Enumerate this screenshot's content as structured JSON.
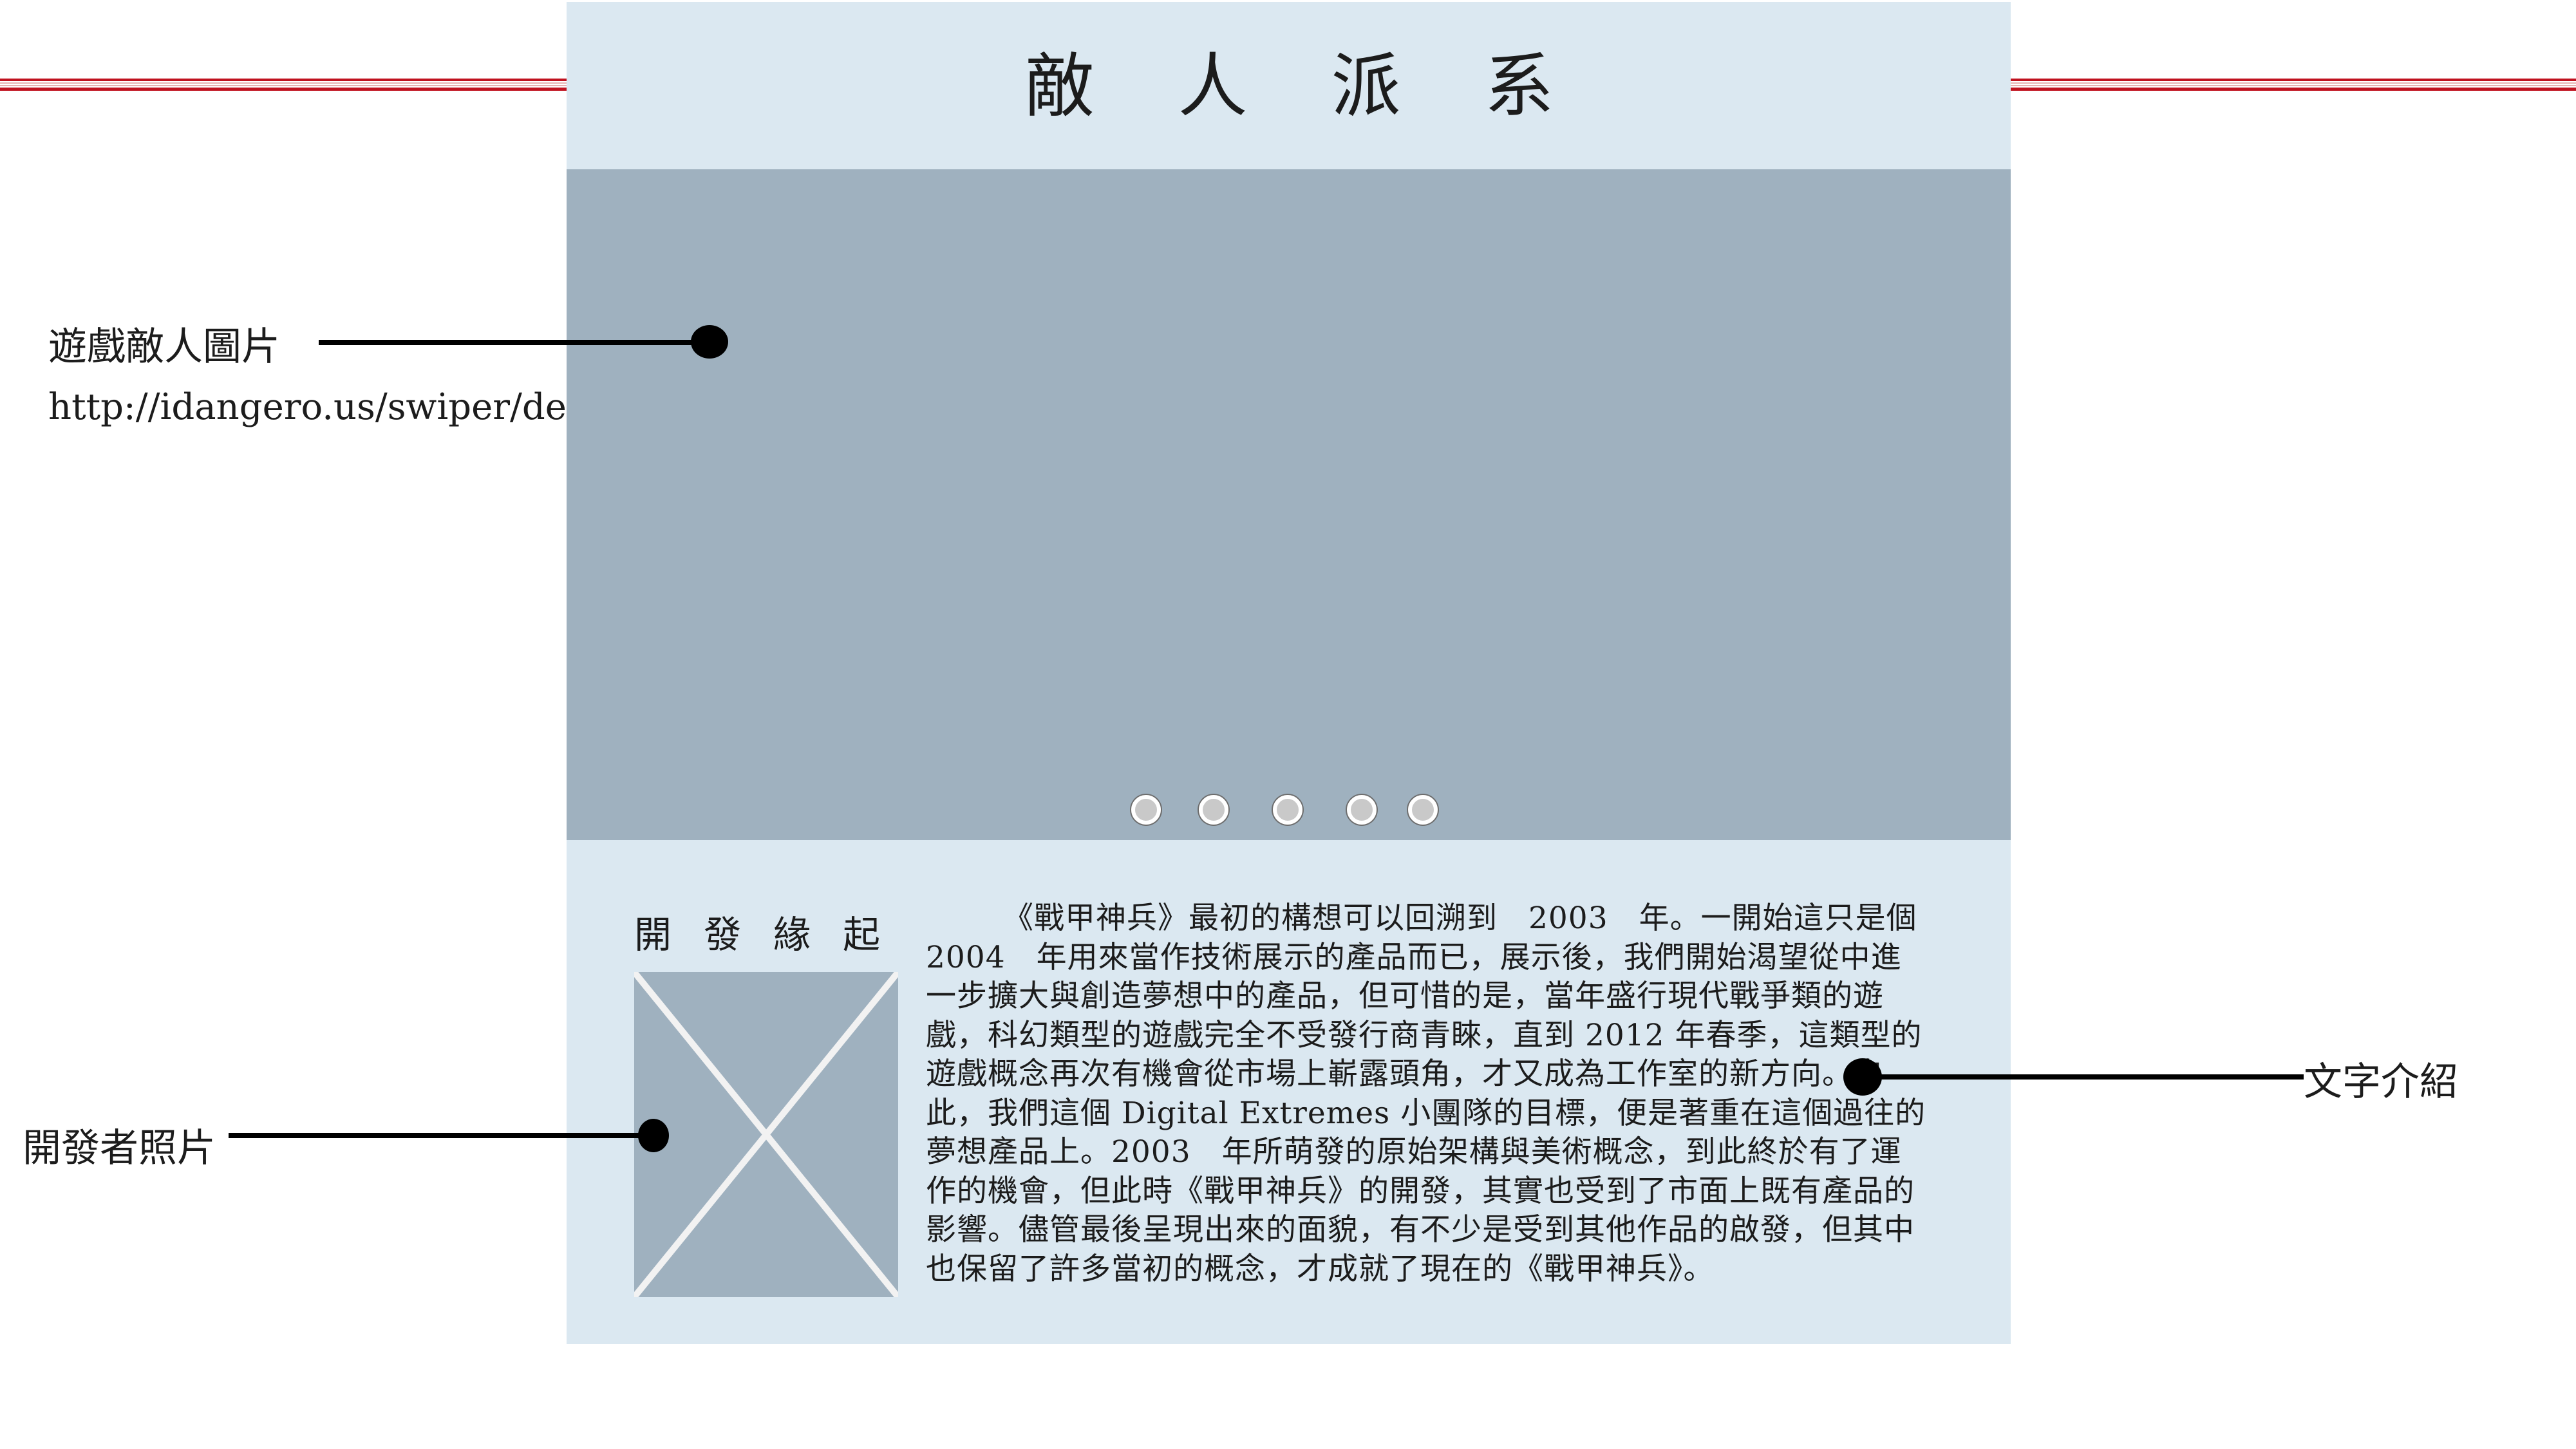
{
  "header": {
    "title": "敵人派系"
  },
  "slider": {
    "pagination_count": 5
  },
  "origin": {
    "title": "開發緣起",
    "intro_text": "《戰甲神兵》最初的構想可以回溯到　2003　年。一開始這只是個 2004　年用來當作技術展示的產品而已，展示後，我們開始渴望從中進一步擴大與創造夢想中的產品，但可惜的是，當年盛行現代戰爭類的遊戲，科幻類型的遊戲完全不受發行商青睞，直到 2012 年春季，這類型的遊戲概念再次有機會從市場上嶄露頭角，才又成為工作室的新方向。自此，我們這個 Digital Extremes 小團隊的目標，便是著重在這個過往的夢想產品上。2003　年所萌發的原始架構與美術概念，到此終於有了運作的機會，但此時《戰甲神兵》的開發，其實也受到了市面上既有產品的影響。儘管最後呈現出來的面貌，有不少是受到其他作品的啟發，但其中也保留了許多當初的概念，才成就了現在的《戰甲神兵》。"
  },
  "annotations": {
    "enemy_image": "遊戲敵人圖片",
    "enemy_image_url": "http://idangero.us/swiper/demos/",
    "text_intro": "文字介紹",
    "developer_photo": "開發者照片"
  },
  "colors": {
    "panel_bg": "#dbe8f1",
    "placeholder_bg": "#9fb1bf",
    "accent_red": "#c0121f"
  }
}
